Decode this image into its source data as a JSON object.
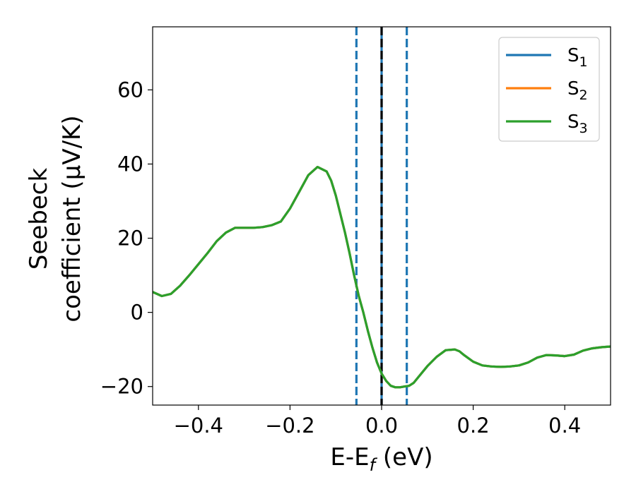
{
  "chart_data": {
    "type": "line",
    "xlabel": {
      "main": "E-E",
      "sub": "f",
      "unit": " (eV)"
    },
    "ylabel": {
      "line1": "Seebeck",
      "line2": "coefficient  (μV/K)"
    },
    "xlim": [
      -0.5,
      0.5
    ],
    "ylim": [
      -25,
      77
    ],
    "xticks": [
      -0.4,
      -0.2,
      0.0,
      0.2,
      0.4
    ],
    "xtick_labels": [
      "−0.4",
      "−0.2",
      "0.0",
      "0.2",
      "0.4"
    ],
    "yticks": [
      -20,
      0,
      20,
      40,
      60
    ],
    "ytick_labels": [
      "−20",
      "0",
      "20",
      "40",
      "60"
    ],
    "grid": false,
    "legend_position": "top-right",
    "vlines": [
      {
        "x": -0.055,
        "style": "dashed",
        "color": "#1f77b4"
      },
      {
        "x": 0.055,
        "style": "dashed",
        "color": "#1f77b4"
      },
      {
        "x": 0.0,
        "style": "solid",
        "color": "#1f77b4"
      },
      {
        "x": 0.0,
        "style": "dashed",
        "color": "#000000"
      }
    ],
    "x": [
      -0.5,
      -0.48,
      -0.46,
      -0.44,
      -0.42,
      -0.4,
      -0.38,
      -0.36,
      -0.34,
      -0.32,
      -0.3,
      -0.28,
      -0.26,
      -0.24,
      -0.22,
      -0.2,
      -0.18,
      -0.16,
      -0.14,
      -0.12,
      -0.11,
      -0.1,
      -0.09,
      -0.08,
      -0.07,
      -0.06,
      -0.05,
      -0.04,
      -0.03,
      -0.02,
      -0.01,
      0.0,
      0.01,
      0.02,
      0.03,
      0.04,
      0.05,
      0.06,
      0.07,
      0.08,
      0.1,
      0.12,
      0.14,
      0.16,
      0.17,
      0.18,
      0.2,
      0.22,
      0.24,
      0.26,
      0.28,
      0.3,
      0.32,
      0.34,
      0.36,
      0.38,
      0.4,
      0.42,
      0.44,
      0.46,
      0.48,
      0.5
    ],
    "series": [
      {
        "name": {
          "main": "S",
          "sub": "1"
        },
        "color": "#1f77b4",
        "y": [
          5.5,
          4.4,
          5.0,
          7.2,
          10.0,
          13.0,
          16.0,
          19.2,
          21.5,
          22.8,
          22.8,
          22.8,
          23.0,
          23.5,
          24.5,
          28.0,
          32.5,
          37.0,
          39.2,
          38.0,
          35.5,
          31.5,
          26.5,
          21.5,
          16.0,
          10.0,
          4.5,
          0.0,
          -5.0,
          -9.5,
          -13.5,
          -16.5,
          -18.5,
          -19.8,
          -20.2,
          -20.2,
          -20.0,
          -19.8,
          -19.0,
          -17.5,
          -14.5,
          -12.0,
          -10.2,
          -10.0,
          -10.5,
          -11.5,
          -13.3,
          -14.3,
          -14.6,
          -14.7,
          -14.6,
          -14.3,
          -13.5,
          -12.2,
          -11.5,
          -11.6,
          -11.8,
          -11.4,
          -10.3,
          -9.7,
          -9.4,
          -9.2
        ]
      },
      {
        "name": {
          "main": "S",
          "sub": "2"
        },
        "color": "#ff7f0e",
        "y": [
          5.5,
          4.4,
          5.0,
          7.2,
          10.0,
          13.0,
          16.0,
          19.2,
          21.5,
          22.8,
          22.8,
          22.8,
          23.0,
          23.5,
          24.5,
          28.0,
          32.5,
          37.0,
          39.2,
          38.0,
          35.5,
          31.5,
          26.5,
          21.5,
          16.0,
          10.0,
          4.5,
          0.0,
          -5.0,
          -9.5,
          -13.5,
          -16.5,
          -18.5,
          -19.8,
          -20.2,
          -20.2,
          -20.0,
          -19.8,
          -19.0,
          -17.5,
          -14.5,
          -12.0,
          -10.2,
          -10.0,
          -10.5,
          -11.5,
          -13.3,
          -14.3,
          -14.6,
          -14.7,
          -14.6,
          -14.3,
          -13.5,
          -12.2,
          -11.5,
          -11.6,
          -11.8,
          -11.4,
          -10.3,
          -9.7,
          -9.4,
          -9.2
        ]
      },
      {
        "name": {
          "main": "S",
          "sub": "3"
        },
        "color": "#2ca02c",
        "y": [
          5.5,
          4.4,
          5.0,
          7.2,
          10.0,
          13.0,
          16.0,
          19.2,
          21.5,
          22.8,
          22.8,
          22.8,
          23.0,
          23.5,
          24.5,
          28.0,
          32.5,
          37.0,
          39.2,
          38.0,
          35.5,
          31.5,
          26.5,
          21.5,
          16.0,
          10.0,
          4.5,
          0.0,
          -5.0,
          -9.5,
          -13.5,
          -16.5,
          -18.5,
          -19.8,
          -20.2,
          -20.2,
          -20.0,
          -19.8,
          -19.0,
          -17.5,
          -14.5,
          -12.0,
          -10.2,
          -10.0,
          -10.5,
          -11.5,
          -13.3,
          -14.3,
          -14.6,
          -14.7,
          -14.6,
          -14.3,
          -13.5,
          -12.2,
          -11.5,
          -11.6,
          -11.8,
          -11.4,
          -10.3,
          -9.7,
          -9.4,
          -9.2
        ]
      }
    ]
  }
}
